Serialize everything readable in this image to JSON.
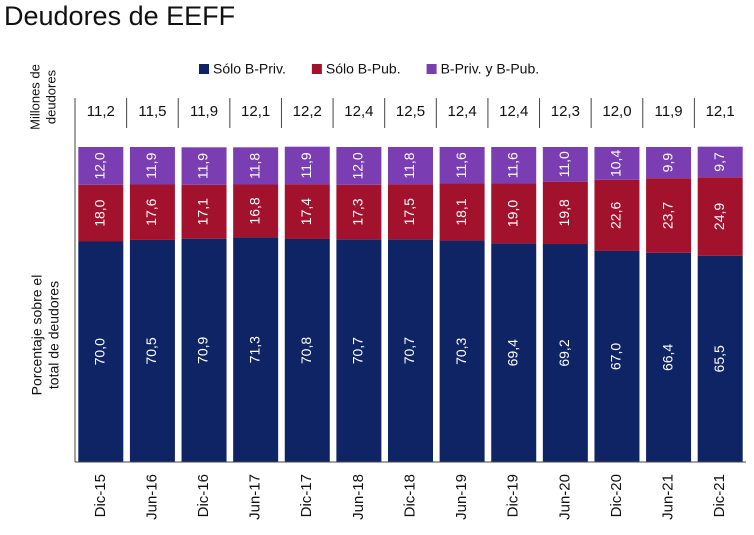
{
  "chart_data": {
    "type": "bar",
    "stacked": true,
    "title": "Deudores de EEFF",
    "categories": [
      "Dic-15",
      "Jun-16",
      "Dic-16",
      "Jun-17",
      "Dic-17",
      "Jun-18",
      "Dic-18",
      "Jun-19",
      "Dic-19",
      "Jun-20",
      "Dic-20",
      "Jun-21",
      "Dic-21"
    ],
    "series": [
      {
        "name": "Sólo B-Priv.",
        "color": "#0f2465",
        "values": [
          70.0,
          70.5,
          70.9,
          71.3,
          70.8,
          70.7,
          70.7,
          70.3,
          69.4,
          69.2,
          67.0,
          66.4,
          65.5
        ],
        "value_labels": [
          "70,0",
          "70,5",
          "70,9",
          "71,3",
          "70,8",
          "70,7",
          "70,7",
          "70,3",
          "69,4",
          "69,2",
          "67,0",
          "66,4",
          "65,5"
        ]
      },
      {
        "name": "Sólo B-Pub.",
        "color": "#a3122c",
        "values": [
          18.0,
          17.6,
          17.1,
          16.8,
          17.4,
          17.3,
          17.5,
          18.1,
          19.0,
          19.8,
          22.6,
          23.7,
          24.9
        ],
        "value_labels": [
          "18,0",
          "17,6",
          "17,1",
          "16,8",
          "17,4",
          "17,3",
          "17,5",
          "18,1",
          "19,0",
          "19,8",
          "22,6",
          "23,7",
          "24,9"
        ]
      },
      {
        "name": "B-Priv. y B-Pub.",
        "color": "#7a3db2",
        "values": [
          12.0,
          11.9,
          11.9,
          11.8,
          11.9,
          12.0,
          11.8,
          11.6,
          11.6,
          11.0,
          10.4,
          9.9,
          9.7
        ],
        "value_labels": [
          "12,0",
          "11,9",
          "11,9",
          "11,8",
          "11,9",
          "12,0",
          "11,8",
          "11,6",
          "11,6",
          "11,0",
          "10,4",
          "9,9",
          "9,7"
        ]
      }
    ],
    "totals": {
      "label": [
        "Millones de",
        "deudores"
      ],
      "values": [
        11.2,
        11.5,
        11.9,
        12.1,
        12.2,
        12.4,
        12.5,
        12.4,
        12.4,
        12.3,
        12.0,
        11.9,
        12.1
      ],
      "value_labels": [
        "11,2",
        "11,5",
        "11,9",
        "12,1",
        "12,2",
        "12,4",
        "12,5",
        "12,4",
        "12,4",
        "12,3",
        "12,0",
        "11,9",
        "12,1"
      ]
    },
    "y_label": [
      "Porcentaje sobre el",
      "total de deudores"
    ],
    "ylim": [
      0,
      100
    ]
  }
}
